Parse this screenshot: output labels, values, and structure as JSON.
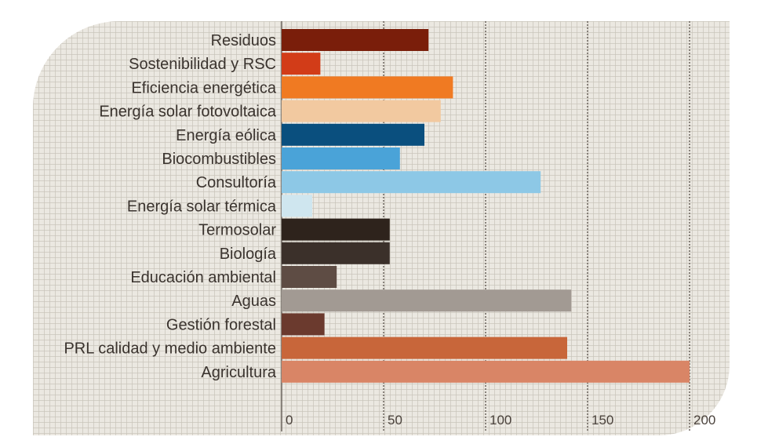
{
  "chart_data": {
    "type": "bar",
    "orientation": "horizontal",
    "categories": [
      "Residuos",
      "Sostenibilidad y RSC",
      "Eficiencia energética",
      "Energía solar fotovoltaica",
      "Energía eólica",
      "Biocombustibles",
      "Consultoría",
      "Energía solar térmica",
      "Termosolar",
      "Biología",
      "Educación ambiental",
      "Aguas",
      "Gestión forestal",
      "PRL calidad y medio ambiente",
      "Agricultura"
    ],
    "values": [
      72,
      19,
      84,
      78,
      70,
      58,
      127,
      15,
      53,
      53,
      27,
      142,
      21,
      140,
      200
    ],
    "colors": [
      "#7a1e0a",
      "#d23c18",
      "#f07a22",
      "#f2c9a0",
      "#0a4f7e",
      "#4aa3d8",
      "#8dc8e6",
      "#cfe6ef",
      "#2e231c",
      "#3b302a",
      "#5e4c44",
      "#a29a93",
      "#6b3a2e",
      "#c8663a",
      "#d98566"
    ],
    "xticks": [
      "0",
      "50",
      "100",
      "150",
      "200"
    ],
    "xlim": [
      0,
      200
    ],
    "grid": "dotted vertical at ticks",
    "title": "",
    "xlabel": "",
    "ylabel": ""
  }
}
